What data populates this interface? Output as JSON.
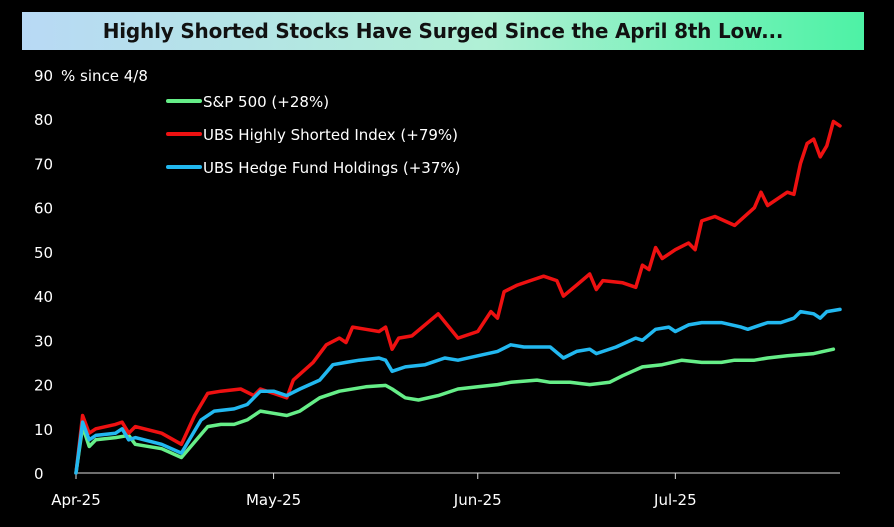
{
  "chart_data": {
    "type": "line",
    "title": "Highly Shorted Stocks Have Surged Since the April 8th Low...",
    "ylabel": "% since 4/8",
    "xlabel": "",
    "ylim": [
      0,
      90
    ],
    "yticks": [
      0,
      10,
      20,
      30,
      40,
      50,
      60,
      70,
      80,
      90
    ],
    "xlim": [
      "2025-04-01",
      "2025-07-26"
    ],
    "xticks": [
      {
        "date": "2025-04-01",
        "label": "Apr-25"
      },
      {
        "date": "2025-05-01",
        "label": "May-25"
      },
      {
        "date": "2025-06-01",
        "label": "Jun-25"
      },
      {
        "date": "2025-07-01",
        "label": "Jul-25"
      }
    ],
    "grid": false,
    "legend_position": "top-left",
    "series": [
      {
        "name": "S&P 500 (+28%)",
        "color": "#66ee88",
        "points": [
          [
            "2025-04-01",
            0
          ],
          [
            "2025-04-02",
            10.5
          ],
          [
            "2025-04-03",
            6
          ],
          [
            "2025-04-04",
            7.5
          ],
          [
            "2025-04-07",
            8
          ],
          [
            "2025-04-09",
            8.5
          ],
          [
            "2025-04-10",
            6.5
          ],
          [
            "2025-04-14",
            5.5
          ],
          [
            "2025-04-17",
            3.5
          ],
          [
            "2025-04-21",
            10.5
          ],
          [
            "2025-04-23",
            11
          ],
          [
            "2025-04-25",
            11
          ],
          [
            "2025-04-27",
            12
          ],
          [
            "2025-04-29",
            14
          ],
          [
            "2025-05-01",
            13.5
          ],
          [
            "2025-05-03",
            13
          ],
          [
            "2025-05-05",
            14
          ],
          [
            "2025-05-08",
            17
          ],
          [
            "2025-05-11",
            18.5
          ],
          [
            "2025-05-15",
            19.5
          ],
          [
            "2025-05-18",
            19.8
          ],
          [
            "2025-05-19",
            19
          ],
          [
            "2025-05-21",
            17
          ],
          [
            "2025-05-23",
            16.5
          ],
          [
            "2025-05-26",
            17.5
          ],
          [
            "2025-05-29",
            19
          ],
          [
            "2025-06-01",
            19.5
          ],
          [
            "2025-06-04",
            20
          ],
          [
            "2025-06-06",
            20.5
          ],
          [
            "2025-06-10",
            21
          ],
          [
            "2025-06-12",
            20.5
          ],
          [
            "2025-06-15",
            20.5
          ],
          [
            "2025-06-18",
            20
          ],
          [
            "2025-06-21",
            20.5
          ],
          [
            "2025-06-23",
            22
          ],
          [
            "2025-06-26",
            24
          ],
          [
            "2025-06-29",
            24.5
          ],
          [
            "2025-07-02",
            25.5
          ],
          [
            "2025-07-05",
            25
          ],
          [
            "2025-07-08",
            25
          ],
          [
            "2025-07-10",
            25.5
          ],
          [
            "2025-07-13",
            25.5
          ],
          [
            "2025-07-15",
            26
          ],
          [
            "2025-07-18",
            26.5
          ],
          [
            "2025-07-22",
            27
          ],
          [
            "2025-07-25",
            28
          ]
        ]
      },
      {
        "name": "UBS Highly Shorted Index (+79%)",
        "color": "#ee1111",
        "points": [
          [
            "2025-04-01",
            0
          ],
          [
            "2025-04-02",
            13
          ],
          [
            "2025-04-03",
            9
          ],
          [
            "2025-04-04",
            10
          ],
          [
            "2025-04-07",
            11
          ],
          [
            "2025-04-08",
            11.5
          ],
          [
            "2025-04-09",
            9
          ],
          [
            "2025-04-10",
            10.5
          ],
          [
            "2025-04-14",
            9
          ],
          [
            "2025-04-17",
            6.5
          ],
          [
            "2025-04-19",
            13
          ],
          [
            "2025-04-21",
            18
          ],
          [
            "2025-04-23",
            18.5
          ],
          [
            "2025-04-26",
            19
          ],
          [
            "2025-04-28",
            17.5
          ],
          [
            "2025-04-29",
            19
          ],
          [
            "2025-05-01",
            18
          ],
          [
            "2025-05-03",
            17
          ],
          [
            "2025-05-04",
            21
          ],
          [
            "2025-05-07",
            25
          ],
          [
            "2025-05-09",
            29
          ],
          [
            "2025-05-11",
            30.5
          ],
          [
            "2025-05-12",
            29.5
          ],
          [
            "2025-05-13",
            33
          ],
          [
            "2025-05-15",
            32.5
          ],
          [
            "2025-05-17",
            32
          ],
          [
            "2025-05-18",
            33
          ],
          [
            "2025-05-19",
            28
          ],
          [
            "2025-05-20",
            30.5
          ],
          [
            "2025-05-22",
            31
          ],
          [
            "2025-05-26",
            36
          ],
          [
            "2025-05-29",
            30.5
          ],
          [
            "2025-06-01",
            32
          ],
          [
            "2025-06-03",
            36.5
          ],
          [
            "2025-06-04",
            35
          ],
          [
            "2025-06-05",
            41
          ],
          [
            "2025-06-07",
            42.5
          ],
          [
            "2025-06-09",
            43.5
          ],
          [
            "2025-06-11",
            44.5
          ],
          [
            "2025-06-13",
            43.5
          ],
          [
            "2025-06-14",
            40
          ],
          [
            "2025-06-16",
            42.5
          ],
          [
            "2025-06-18",
            45
          ],
          [
            "2025-06-19",
            41.5
          ],
          [
            "2025-06-20",
            43.5
          ],
          [
            "2025-06-23",
            43
          ],
          [
            "2025-06-25",
            42
          ],
          [
            "2025-06-26",
            47
          ],
          [
            "2025-06-27",
            46
          ],
          [
            "2025-06-28",
            51
          ],
          [
            "2025-06-29",
            48.5
          ],
          [
            "2025-07-01",
            50.5
          ],
          [
            "2025-07-03",
            52
          ],
          [
            "2025-07-04",
            50.5
          ],
          [
            "2025-07-05",
            57
          ],
          [
            "2025-07-07",
            58
          ],
          [
            "2025-07-10",
            56
          ],
          [
            "2025-07-13",
            60
          ],
          [
            "2025-07-14",
            63.5
          ],
          [
            "2025-07-15",
            60.5
          ],
          [
            "2025-07-18",
            63.5
          ],
          [
            "2025-07-19",
            63
          ],
          [
            "2025-07-20",
            70
          ],
          [
            "2025-07-21",
            74.5
          ],
          [
            "2025-07-22",
            75.5
          ],
          [
            "2025-07-23",
            71.5
          ],
          [
            "2025-07-24",
            74
          ],
          [
            "2025-07-25",
            79.5
          ],
          [
            "2025-07-26",
            78.5
          ]
        ]
      },
      {
        "name": "UBS Hedge Fund Holdings (+37%)",
        "color": "#22b8f0",
        "points": [
          [
            "2025-04-01",
            0
          ],
          [
            "2025-04-02",
            11.5
          ],
          [
            "2025-04-03",
            7.5
          ],
          [
            "2025-04-04",
            8.5
          ],
          [
            "2025-04-07",
            9
          ],
          [
            "2025-04-08",
            10
          ],
          [
            "2025-04-09",
            7.5
          ],
          [
            "2025-04-10",
            8
          ],
          [
            "2025-04-14",
            6.5
          ],
          [
            "2025-04-17",
            4.5
          ],
          [
            "2025-04-20",
            12
          ],
          [
            "2025-04-22",
            14
          ],
          [
            "2025-04-25",
            14.5
          ],
          [
            "2025-04-27",
            15.5
          ],
          [
            "2025-04-29",
            18.5
          ],
          [
            "2025-05-01",
            18.5
          ],
          [
            "2025-05-03",
            17.5
          ],
          [
            "2025-05-05",
            19
          ],
          [
            "2025-05-08",
            21
          ],
          [
            "2025-05-10",
            24.5
          ],
          [
            "2025-05-12",
            25
          ],
          [
            "2025-05-14",
            25.5
          ],
          [
            "2025-05-17",
            26
          ],
          [
            "2025-05-18",
            25.5
          ],
          [
            "2025-05-19",
            23
          ],
          [
            "2025-05-21",
            24
          ],
          [
            "2025-05-24",
            24.5
          ],
          [
            "2025-05-27",
            26
          ],
          [
            "2025-05-29",
            25.5
          ],
          [
            "2025-06-01",
            26.5
          ],
          [
            "2025-06-04",
            27.5
          ],
          [
            "2025-06-06",
            29
          ],
          [
            "2025-06-08",
            28.5
          ],
          [
            "2025-06-12",
            28.5
          ],
          [
            "2025-06-14",
            26
          ],
          [
            "2025-06-16",
            27.5
          ],
          [
            "2025-06-18",
            28
          ],
          [
            "2025-06-19",
            27
          ],
          [
            "2025-06-22",
            28.5
          ],
          [
            "2025-06-25",
            30.5
          ],
          [
            "2025-06-26",
            30
          ],
          [
            "2025-06-28",
            32.5
          ],
          [
            "2025-06-30",
            33
          ],
          [
            "2025-07-01",
            32
          ],
          [
            "2025-07-03",
            33.5
          ],
          [
            "2025-07-05",
            34
          ],
          [
            "2025-07-08",
            34
          ],
          [
            "2025-07-11",
            33
          ],
          [
            "2025-07-12",
            32.5
          ],
          [
            "2025-07-15",
            34
          ],
          [
            "2025-07-17",
            34
          ],
          [
            "2025-07-19",
            35
          ],
          [
            "2025-07-20",
            36.5
          ],
          [
            "2025-07-22",
            36
          ],
          [
            "2025-07-23",
            35
          ],
          [
            "2025-07-24",
            36.5
          ],
          [
            "2025-07-26",
            37
          ]
        ]
      }
    ]
  }
}
